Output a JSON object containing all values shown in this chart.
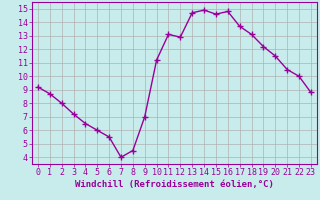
{
  "x": [
    0,
    1,
    2,
    3,
    4,
    5,
    6,
    7,
    8,
    9,
    10,
    11,
    12,
    13,
    14,
    15,
    16,
    17,
    18,
    19,
    20,
    21,
    22,
    23
  ],
  "y": [
    9.2,
    8.7,
    8.0,
    7.2,
    6.5,
    6.0,
    5.5,
    4.0,
    4.5,
    7.0,
    11.2,
    13.1,
    12.9,
    14.7,
    14.9,
    14.6,
    14.8,
    13.7,
    13.1,
    12.2,
    11.5,
    10.5,
    10.0,
    8.8
  ],
  "line_color": "#990099",
  "marker": "+",
  "marker_size": 4,
  "bg_color": "#c8ecec",
  "grid_color": "#b0b0b0",
  "xlabel": "Windchill (Refroidissement éolien,°C)",
  "xlabel_color": "#990099",
  "tick_color": "#990099",
  "ylim": [
    3.5,
    15.5
  ],
  "xlim": [
    -0.5,
    23.5
  ],
  "yticks": [
    4,
    5,
    6,
    7,
    8,
    9,
    10,
    11,
    12,
    13,
    14,
    15
  ],
  "xticks": [
    0,
    1,
    2,
    3,
    4,
    5,
    6,
    7,
    8,
    9,
    10,
    11,
    12,
    13,
    14,
    15,
    16,
    17,
    18,
    19,
    20,
    21,
    22,
    23
  ],
  "axis_label_fontsize": 6.5,
  "tick_fontsize": 6.0,
  "line_width": 1.0,
  "spine_color": "#990099",
  "marker_edge_width": 1.0
}
